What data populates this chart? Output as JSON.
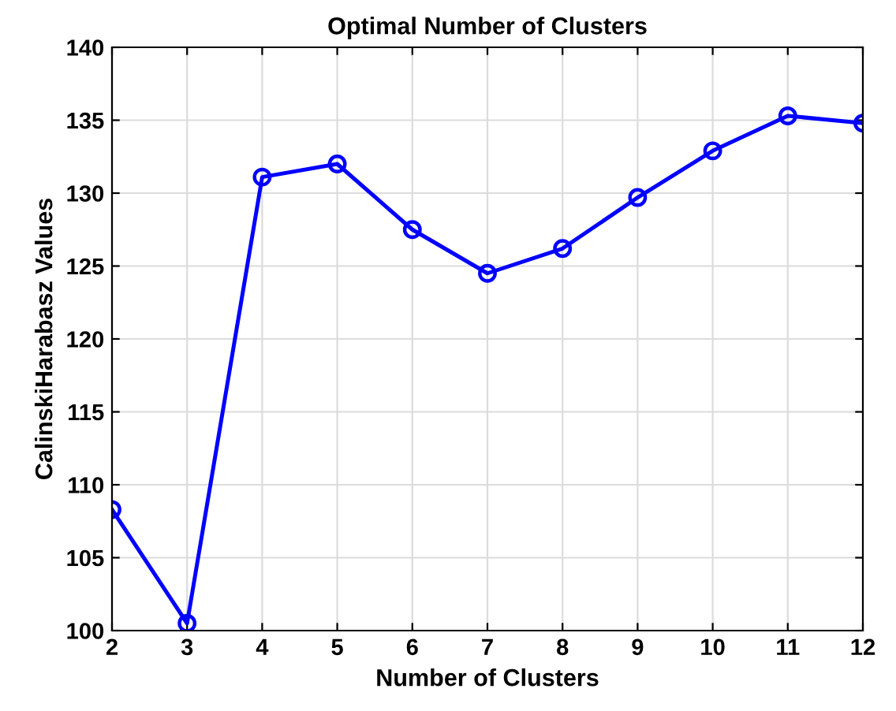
{
  "chart_data": {
    "type": "line",
    "title": "Optimal Number of Clusters",
    "xlabel": "Number of Clusters",
    "ylabel": "CalinskiHarabasz Values",
    "x": [
      2,
      3,
      4,
      5,
      6,
      7,
      8,
      9,
      10,
      11,
      12
    ],
    "series": [
      {
        "color": "#0000ff",
        "values": [
          108.3,
          100.5,
          131.1,
          132.0,
          127.5,
          124.5,
          126.2,
          129.7,
          132.9,
          135.3,
          134.8
        ]
      }
    ],
    "xlim": [
      2,
      12
    ],
    "ylim": [
      100,
      140
    ],
    "xticks": [
      2,
      3,
      4,
      5,
      6,
      7,
      8,
      9,
      10,
      11,
      12
    ],
    "yticks": [
      100,
      105,
      110,
      115,
      120,
      125,
      130,
      135,
      140
    ],
    "grid": true,
    "marker": "circle",
    "line_style": "solid"
  }
}
